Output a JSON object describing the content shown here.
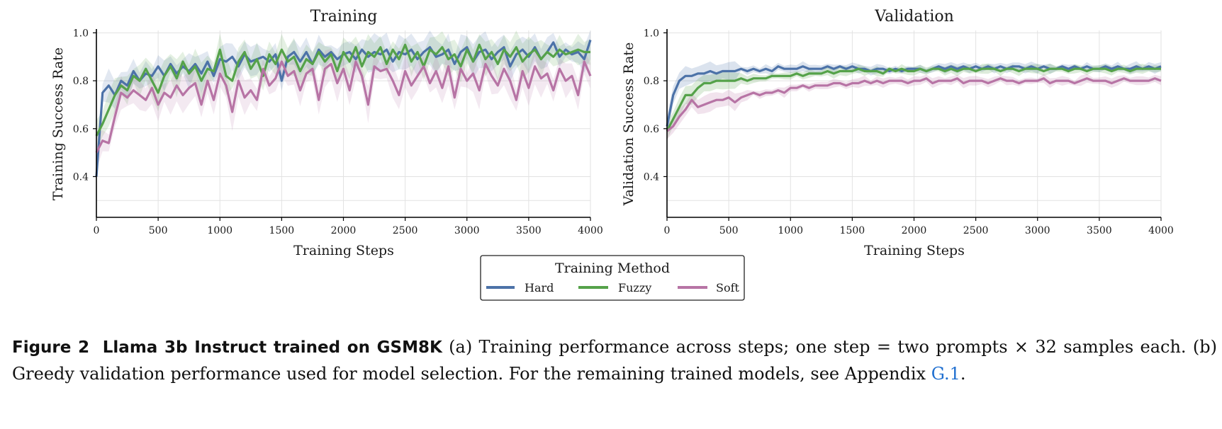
{
  "chart_data": [
    {
      "type": "line",
      "title": "Training",
      "xlabel": "Training Steps",
      "ylabel": "Training Success Rate",
      "xlim": [
        0,
        4000
      ],
      "ylim": [
        0.23,
        1.01
      ],
      "xticks": [
        0,
        500,
        1000,
        1500,
        2000,
        2500,
        3000,
        3500,
        4000
      ],
      "yticks": [
        0.4,
        0.6,
        0.8,
        1.0
      ],
      "ytick_labels": [
        "0.4",
        "0.6",
        "0.8",
        "1.0"
      ],
      "grid": true,
      "shaded_band": true,
      "x": [
        0,
        50,
        100,
        150,
        200,
        250,
        300,
        350,
        400,
        450,
        500,
        550,
        600,
        650,
        700,
        750,
        800,
        850,
        900,
        950,
        1000,
        1050,
        1100,
        1150,
        1200,
        1250,
        1300,
        1350,
        1400,
        1450,
        1500,
        1550,
        1600,
        1650,
        1700,
        1750,
        1800,
        1850,
        1900,
        1950,
        2000,
        2050,
        2100,
        2150,
        2200,
        2250,
        2300,
        2350,
        2400,
        2450,
        2500,
        2550,
        2600,
        2650,
        2700,
        2750,
        2800,
        2850,
        2900,
        2950,
        3000,
        3050,
        3100,
        3150,
        3200,
        3250,
        3300,
        3350,
        3400,
        3450,
        3500,
        3550,
        3600,
        3650,
        3700,
        3750,
        3800,
        3850,
        3900,
        3950,
        4000
      ],
      "series": [
        {
          "name": "Hard",
          "color": "#4c72a8",
          "values": [
            0.4,
            0.75,
            0.78,
            0.74,
            0.8,
            0.78,
            0.84,
            0.8,
            0.83,
            0.82,
            0.86,
            0.82,
            0.87,
            0.83,
            0.86,
            0.84,
            0.87,
            0.83,
            0.88,
            0.82,
            0.89,
            0.88,
            0.9,
            0.86,
            0.91,
            0.88,
            0.89,
            0.9,
            0.88,
            0.91,
            0.8,
            0.9,
            0.92,
            0.88,
            0.92,
            0.87,
            0.93,
            0.9,
            0.92,
            0.89,
            0.91,
            0.92,
            0.89,
            0.93,
            0.9,
            0.92,
            0.91,
            0.93,
            0.88,
            0.92,
            0.91,
            0.93,
            0.89,
            0.92,
            0.94,
            0.9,
            0.91,
            0.93,
            0.87,
            0.92,
            0.94,
            0.88,
            0.92,
            0.93,
            0.89,
            0.92,
            0.94,
            0.86,
            0.91,
            0.93,
            0.9,
            0.94,
            0.89,
            0.92,
            0.96,
            0.9,
            0.93,
            0.91,
            0.92,
            0.89,
            0.97
          ]
        },
        {
          "name": "Fuzzy",
          "color": "#55a24a",
          "values": [
            0.57,
            0.62,
            0.68,
            0.74,
            0.78,
            0.76,
            0.82,
            0.8,
            0.85,
            0.8,
            0.75,
            0.82,
            0.86,
            0.81,
            0.88,
            0.83,
            0.86,
            0.8,
            0.85,
            0.84,
            0.93,
            0.82,
            0.8,
            0.88,
            0.92,
            0.85,
            0.89,
            0.82,
            0.91,
            0.87,
            0.93,
            0.88,
            0.9,
            0.84,
            0.89,
            0.87,
            0.92,
            0.88,
            0.91,
            0.84,
            0.92,
            0.88,
            0.94,
            0.86,
            0.92,
            0.9,
            0.94,
            0.87,
            0.93,
            0.89,
            0.95,
            0.88,
            0.92,
            0.86,
            0.93,
            0.91,
            0.94,
            0.89,
            0.91,
            0.86,
            0.93,
            0.88,
            0.95,
            0.89,
            0.92,
            0.87,
            0.93,
            0.9,
            0.94,
            0.88,
            0.91,
            0.93,
            0.89,
            0.92,
            0.9,
            0.93,
            0.91,
            0.92,
            0.93,
            0.92,
            0.92
          ]
        },
        {
          "name": "Soft",
          "color": "#b774a5",
          "values": [
            0.5,
            0.55,
            0.54,
            0.65,
            0.75,
            0.73,
            0.76,
            0.74,
            0.72,
            0.77,
            0.7,
            0.75,
            0.73,
            0.78,
            0.74,
            0.77,
            0.79,
            0.7,
            0.8,
            0.72,
            0.83,
            0.78,
            0.67,
            0.8,
            0.73,
            0.76,
            0.72,
            0.85,
            0.78,
            0.81,
            0.88,
            0.82,
            0.84,
            0.76,
            0.83,
            0.85,
            0.72,
            0.85,
            0.87,
            0.79,
            0.85,
            0.76,
            0.88,
            0.82,
            0.7,
            0.86,
            0.84,
            0.85,
            0.8,
            0.74,
            0.84,
            0.78,
            0.82,
            0.86,
            0.79,
            0.84,
            0.77,
            0.86,
            0.73,
            0.85,
            0.8,
            0.83,
            0.76,
            0.87,
            0.82,
            0.78,
            0.85,
            0.8,
            0.72,
            0.84,
            0.77,
            0.86,
            0.81,
            0.83,
            0.76,
            0.85,
            0.8,
            0.82,
            0.74,
            0.88,
            0.82
          ]
        }
      ]
    },
    {
      "type": "line",
      "title": "Validation",
      "xlabel": "Training Steps",
      "ylabel": "Validation Success Rate",
      "xlim": [
        0,
        4000
      ],
      "ylim": [
        0.23,
        1.01
      ],
      "xticks": [
        0,
        500,
        1000,
        1500,
        2000,
        2500,
        3000,
        3500,
        4000
      ],
      "yticks": [
        0.4,
        0.6,
        0.8,
        1.0
      ],
      "ytick_labels": [
        "0.4",
        "0.6",
        "0.8",
        "1.0"
      ],
      "grid": true,
      "shaded_band": true,
      "x": [
        0,
        50,
        100,
        150,
        200,
        250,
        300,
        350,
        400,
        450,
        500,
        550,
        600,
        650,
        700,
        750,
        800,
        850,
        900,
        950,
        1000,
        1050,
        1100,
        1150,
        1200,
        1250,
        1300,
        1350,
        1400,
        1450,
        1500,
        1550,
        1600,
        1650,
        1700,
        1750,
        1800,
        1850,
        1900,
        1950,
        2000,
        2050,
        2100,
        2150,
        2200,
        2250,
        2300,
        2350,
        2400,
        2450,
        2500,
        2550,
        2600,
        2650,
        2700,
        2750,
        2800,
        2850,
        2900,
        2950,
        3000,
        3050,
        3100,
        3150,
        3200,
        3250,
        3300,
        3350,
        3400,
        3450,
        3500,
        3550,
        3600,
        3650,
        3700,
        3750,
        3800,
        3850,
        3900,
        3950,
        4000
      ],
      "series": [
        {
          "name": "Hard",
          "color": "#4c72a8",
          "values": [
            0.61,
            0.74,
            0.8,
            0.82,
            0.82,
            0.83,
            0.83,
            0.84,
            0.83,
            0.84,
            0.84,
            0.84,
            0.85,
            0.84,
            0.85,
            0.84,
            0.85,
            0.84,
            0.86,
            0.85,
            0.85,
            0.85,
            0.86,
            0.85,
            0.85,
            0.85,
            0.86,
            0.85,
            0.86,
            0.85,
            0.86,
            0.85,
            0.85,
            0.84,
            0.85,
            0.85,
            0.84,
            0.85,
            0.84,
            0.85,
            0.85,
            0.85,
            0.84,
            0.85,
            0.86,
            0.85,
            0.86,
            0.85,
            0.86,
            0.85,
            0.86,
            0.85,
            0.86,
            0.85,
            0.86,
            0.85,
            0.86,
            0.86,
            0.85,
            0.86,
            0.85,
            0.86,
            0.85,
            0.85,
            0.86,
            0.85,
            0.86,
            0.85,
            0.86,
            0.85,
            0.85,
            0.86,
            0.85,
            0.86,
            0.85,
            0.85,
            0.86,
            0.85,
            0.86,
            0.85,
            0.86
          ]
        },
        {
          "name": "Fuzzy",
          "color": "#55a24a",
          "values": [
            0.59,
            0.64,
            0.69,
            0.74,
            0.74,
            0.77,
            0.79,
            0.79,
            0.8,
            0.8,
            0.8,
            0.8,
            0.81,
            0.8,
            0.81,
            0.81,
            0.81,
            0.82,
            0.82,
            0.82,
            0.82,
            0.83,
            0.82,
            0.83,
            0.83,
            0.83,
            0.84,
            0.83,
            0.84,
            0.84,
            0.84,
            0.85,
            0.84,
            0.84,
            0.84,
            0.83,
            0.85,
            0.84,
            0.85,
            0.84,
            0.84,
            0.85,
            0.84,
            0.85,
            0.85,
            0.84,
            0.85,
            0.84,
            0.85,
            0.85,
            0.84,
            0.85,
            0.85,
            0.85,
            0.84,
            0.85,
            0.85,
            0.84,
            0.85,
            0.85,
            0.85,
            0.84,
            0.85,
            0.85,
            0.85,
            0.84,
            0.85,
            0.85,
            0.84,
            0.85,
            0.85,
            0.85,
            0.84,
            0.85,
            0.85,
            0.84,
            0.85,
            0.85,
            0.85,
            0.85,
            0.85
          ]
        },
        {
          "name": "Soft",
          "color": "#b774a5",
          "values": [
            0.59,
            0.61,
            0.65,
            0.68,
            0.72,
            0.69,
            0.7,
            0.71,
            0.72,
            0.72,
            0.73,
            0.71,
            0.73,
            0.74,
            0.75,
            0.74,
            0.75,
            0.75,
            0.76,
            0.75,
            0.77,
            0.77,
            0.78,
            0.77,
            0.78,
            0.78,
            0.78,
            0.79,
            0.79,
            0.78,
            0.79,
            0.79,
            0.8,
            0.79,
            0.8,
            0.79,
            0.8,
            0.8,
            0.8,
            0.79,
            0.8,
            0.8,
            0.81,
            0.79,
            0.8,
            0.8,
            0.8,
            0.81,
            0.79,
            0.8,
            0.8,
            0.8,
            0.79,
            0.8,
            0.81,
            0.8,
            0.8,
            0.79,
            0.8,
            0.8,
            0.8,
            0.81,
            0.79,
            0.8,
            0.8,
            0.8,
            0.79,
            0.8,
            0.81,
            0.8,
            0.8,
            0.8,
            0.79,
            0.8,
            0.81,
            0.8,
            0.8,
            0.8,
            0.8,
            0.81,
            0.8
          ]
        }
      ]
    }
  ],
  "legend": {
    "title": "Training Method",
    "placement": "bottom-center",
    "items": [
      {
        "label": "Hard",
        "color": "#4c72a8"
      },
      {
        "label": "Fuzzy",
        "color": "#55a24a"
      },
      {
        "label": "Soft",
        "color": "#b774a5"
      }
    ]
  },
  "caption": {
    "label": "Figure 2",
    "title": "Llama 3b Instruct trained on GSM8K",
    "text": "(a) Training performance across steps; one step = two prompts × 32 samples each. (b) Greedy validation performance used for model selection. For the remaining trained models, see Appendix",
    "link": "G.1",
    "end": "."
  }
}
